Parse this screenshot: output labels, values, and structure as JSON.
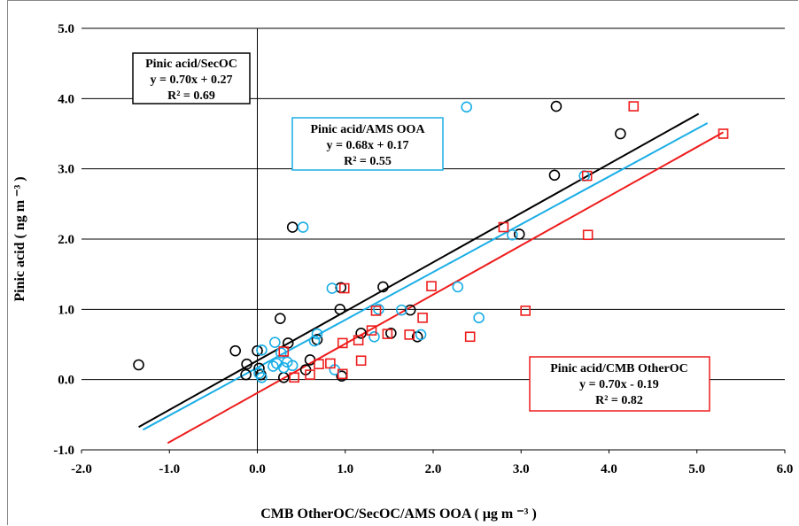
{
  "chart_data": {
    "type": "scatter",
    "xlabel": "CMB OtherOC/SecOC/AMS  OOA ( μg m ⁻³ )",
    "ylabel": "Pinic acid ( ng m ⁻³ )",
    "xlim": [
      -2.0,
      6.0
    ],
    "ylim": [
      -1.0,
      5.0
    ],
    "xticks": [
      "-2.0",
      "-1.0",
      "0.0",
      "1.0",
      "2.0",
      "3.0",
      "4.0",
      "5.0",
      "6.0"
    ],
    "yticks": [
      "-1.0",
      "0.0",
      "1.0",
      "2.0",
      "3.0",
      "4.0",
      "5.0"
    ],
    "grid": "horizontal",
    "series": [
      {
        "name": "Pinic acid/SecOC",
        "marker": "circle",
        "color": "#000000",
        "equation": "y = 0.70x + 0.27",
        "r2": "R² = 0.69",
        "fit": {
          "slope": 0.7,
          "intercept": 0.27,
          "xrange": [
            -1.35,
            5.02
          ]
        },
        "points": [
          [
            -1.35,
            0.21
          ],
          [
            -0.25,
            0.41
          ],
          [
            -0.12,
            0.22
          ],
          [
            -0.13,
            0.07
          ],
          [
            0.0,
            0.41
          ],
          [
            0.02,
            0.16
          ],
          [
            0.04,
            0.07
          ],
          [
            0.26,
            0.87
          ],
          [
            0.3,
            0.03
          ],
          [
            0.35,
            0.52
          ],
          [
            0.4,
            2.17
          ],
          [
            0.55,
            0.14
          ],
          [
            0.6,
            0.28
          ],
          [
            0.68,
            0.57
          ],
          [
            0.94,
            1.0
          ],
          [
            0.95,
            1.31
          ],
          [
            0.96,
            0.05
          ],
          [
            1.18,
            0.66
          ],
          [
            1.43,
            1.32
          ],
          [
            1.52,
            0.66
          ],
          [
            1.74,
            0.99
          ],
          [
            1.82,
            0.61
          ],
          [
            2.98,
            2.07
          ],
          [
            3.38,
            2.91
          ],
          [
            3.4,
            3.89
          ],
          [
            4.13,
            3.5
          ]
        ]
      },
      {
        "name": "Pinic acid/AMS OOA",
        "marker": "circle",
        "color": "#1aaee6",
        "equation": "y = 0.68x + 0.17",
        "r2": "R² = 0.55",
        "fit": {
          "slope": 0.68,
          "intercept": 0.17,
          "xrange": [
            -1.3,
            5.12
          ]
        },
        "points": [
          [
            0.02,
            0.09
          ],
          [
            0.05,
            0.42
          ],
          [
            0.05,
            0.03
          ],
          [
            0.18,
            0.19
          ],
          [
            0.2,
            0.53
          ],
          [
            0.22,
            0.23
          ],
          [
            0.27,
            0.38
          ],
          [
            0.3,
            0.17
          ],
          [
            0.34,
            0.25
          ],
          [
            0.4,
            0.2
          ],
          [
            0.52,
            2.17
          ],
          [
            0.65,
            0.55
          ],
          [
            0.68,
            0.65
          ],
          [
            0.85,
            1.3
          ],
          [
            0.88,
            0.14
          ],
          [
            1.33,
            0.61
          ],
          [
            1.38,
            1.0
          ],
          [
            1.64,
            0.99
          ],
          [
            1.86,
            0.64
          ],
          [
            2.28,
            1.32
          ],
          [
            2.38,
            3.88
          ],
          [
            2.52,
            0.88
          ],
          [
            2.9,
            2.06
          ],
          [
            3.72,
            2.9
          ]
        ]
      },
      {
        "name": "Pinic acid/CMB OtherOC",
        "marker": "square",
        "color": "#ee1c1c",
        "equation": "y = 0.70x - 0.19",
        "r2": "R² = 0.82",
        "fit": {
          "slope": 0.7,
          "intercept": -0.19,
          "xrange": [
            -1.02,
            5.3
          ]
        },
        "points": [
          [
            0.3,
            0.4
          ],
          [
            0.42,
            0.03
          ],
          [
            0.6,
            0.07
          ],
          [
            0.7,
            0.22
          ],
          [
            0.83,
            0.23
          ],
          [
            0.97,
            0.52
          ],
          [
            0.97,
            0.08
          ],
          [
            0.99,
            1.3
          ],
          [
            1.15,
            0.56
          ],
          [
            1.18,
            0.27
          ],
          [
            1.3,
            0.7
          ],
          [
            1.35,
            0.98
          ],
          [
            1.48,
            0.65
          ],
          [
            1.73,
            0.64
          ],
          [
            1.88,
            0.88
          ],
          [
            1.98,
            1.33
          ],
          [
            2.42,
            0.61
          ],
          [
            2.8,
            2.17
          ],
          [
            3.05,
            0.98
          ],
          [
            3.75,
            2.9
          ],
          [
            3.76,
            2.06
          ],
          [
            4.28,
            3.89
          ],
          [
            5.3,
            3.5
          ]
        ]
      }
    ]
  }
}
